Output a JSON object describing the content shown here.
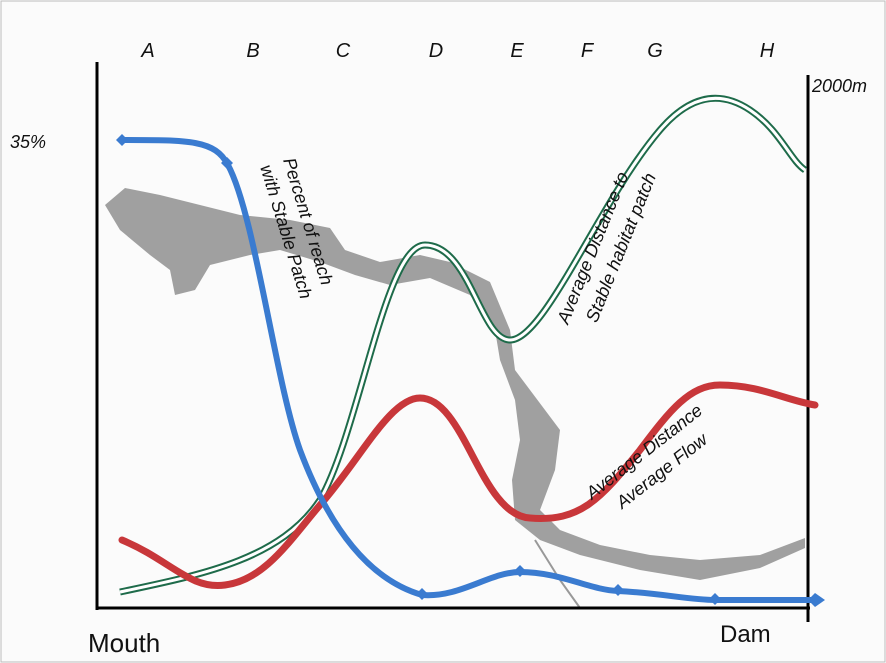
{
  "reaches": [
    "A",
    "B",
    "C",
    "D",
    "E",
    "F",
    "G",
    "H"
  ],
  "right_axis_label": "2000m",
  "left_axis_label": "35%",
  "x_start_label": "Mouth",
  "x_end_label": "Dam",
  "curves": [
    {
      "label_lines": [
        "Percent of reach",
        "with Stable Patch"
      ]
    },
    {
      "label_lines": [
        "Average Distance to",
        "Stable habitat patch"
      ]
    },
    {
      "label_lines": [
        "Average Distance",
        "Average Flow"
      ]
    }
  ]
}
